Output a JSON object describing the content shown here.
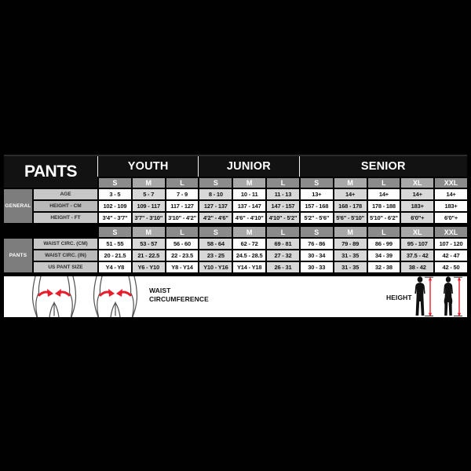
{
  "chart_data": {
    "type": "table",
    "title": "PANTS",
    "groups": [
      {
        "label": "YOUTH",
        "span": 3
      },
      {
        "label": "JUNIOR",
        "span": 3
      },
      {
        "label": "SENIOR",
        "span": 5
      }
    ],
    "size_headers": [
      "S",
      "M",
      "L",
      "S",
      "M",
      "L",
      "S",
      "M",
      "L",
      "XL",
      "XXL"
    ],
    "sections": [
      {
        "label": "GENERAL",
        "rows": [
          {
            "label": "AGE",
            "values": [
              "3 - 5",
              "5 - 7",
              "7 - 9",
              "8 - 10",
              "10 - 11",
              "11 - 13",
              "13+",
              "14+",
              "14+",
              "14+",
              "14+"
            ]
          },
          {
            "label": "HEIGHT - CM",
            "values": [
              "102 - 109",
              "109 - 117",
              "117 - 127",
              "127 - 137",
              "137 - 147",
              "147 - 157",
              "157 - 168",
              "168 - 178",
              "178 - 188",
              "183+",
              "183+"
            ]
          },
          {
            "label": "HEIGHT - FT",
            "values": [
              "3'4\" - 3'7\"",
              "3'7\" - 3'10\"",
              "3'10\" - 4'2\"",
              "4'2\" - 4'6\"",
              "4'6\" - 4'10\"",
              "4'10\" - 5'2\"",
              "5'2\" - 5'6\"",
              "5'6\" - 5'10\"",
              "5'10\" - 6'2\"",
              "6'0\"+",
              "6'0\"+"
            ]
          }
        ]
      },
      {
        "label": "PANTS",
        "rows": [
          {
            "label": "WAIST CIRC. (CM)",
            "values": [
              "51 - 55",
              "53 - 57",
              "56 - 60",
              "58 - 64",
              "62 - 72",
              "69 - 81",
              "76 - 86",
              "79 - 89",
              "86 - 99",
              "95 - 107",
              "107 - 120"
            ]
          },
          {
            "label": "WAIST CIRC. (IN)",
            "values": [
              "20 - 21.5",
              "21 - 22.5",
              "22 - 23.5",
              "23 - 25",
              "24.5 - 28.5",
              "27 - 32",
              "30 - 34",
              "31 - 35",
              "34 - 39",
              "37.5 - 42",
              "42 - 47"
            ]
          },
          {
            "label": "US PANT SIZE",
            "values": [
              "Y4 - Y8",
              "Y6 - Y10",
              "Y8 - Y14",
              "Y10 - Y16",
              "Y14 - Y18",
              "26 - 31",
              "30 - 33",
              "31 - 35",
              "32 - 38",
              "38 - 42",
              "42 - 50"
            ]
          }
        ]
      }
    ],
    "annotations": {
      "waist": "WAIST CIRCUMFERENCE",
      "height": "HEIGHT"
    }
  },
  "colors": {
    "accent_red": "#e81c2a",
    "header_band": "#121212",
    "size_header_dark": "#8b8b8b",
    "size_header_light": "#a8a8a8",
    "section_label_gray": "#7d7d7d",
    "row_label_gray": "#c7c7c7",
    "cell_alt_gray": "#d8d8d8"
  }
}
